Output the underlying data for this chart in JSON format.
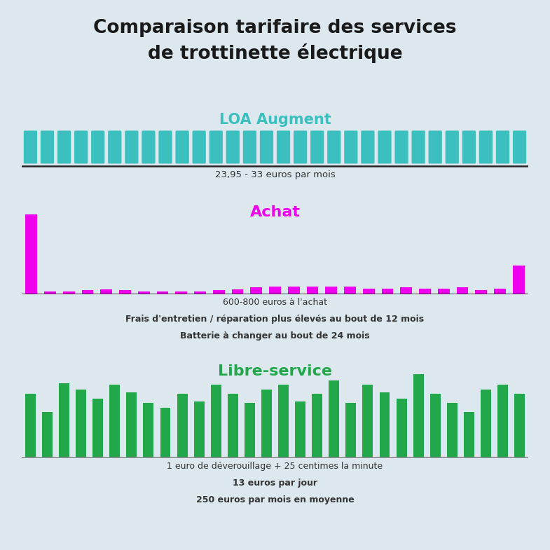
{
  "title": "Comparaison tarifaire des services\nde trottinette électrique",
  "bg_color": "#dce8ee",
  "title_color": "#1a1a1a",
  "title_fontsize": 19,
  "loa_label": "LOA Augment",
  "loa_color": "#3bbfbf",
  "loa_n": 30,
  "loa_note": "23,95 - 33 euros par mois",
  "achat_label": "Achat",
  "achat_color": "#ee00ee",
  "achat_values": [
    9.0,
    0.28,
    0.28,
    0.45,
    0.55,
    0.45,
    0.28,
    0.28,
    0.28,
    0.35,
    0.45,
    0.55,
    0.75,
    0.9,
    0.9,
    0.85,
    0.85,
    0.85,
    0.65,
    0.65,
    0.75,
    0.65,
    0.65,
    0.75,
    0.45,
    0.65,
    3.2
  ],
  "achat_notes": [
    "600-800 euros à l'achat",
    "Frais d'entretien / réparation plus élevés au bout de 12 mois",
    "Batterie à changer au bout de 24 mois"
  ],
  "achat_notes_bold": [
    false,
    true,
    true
  ],
  "libre_label": "Libre-service",
  "libre_color": "#22a84a",
  "libre_values": [
    7.0,
    5.0,
    8.2,
    7.5,
    6.5,
    8.0,
    7.2,
    6.0,
    5.5,
    7.0,
    6.2,
    8.0,
    7.0,
    6.0,
    7.5,
    8.0,
    6.2,
    7.0,
    8.5,
    6.0,
    8.0,
    7.2,
    6.5,
    9.2,
    7.0,
    6.0,
    5.0,
    7.5,
    8.0,
    7.0
  ],
  "libre_notes": [
    "1 euro de déverouillage + 25 centimes la minute",
    "13 euros par jour",
    "250 euros par mois en moyenne"
  ],
  "libre_notes_bold": [
    false,
    true,
    true
  ]
}
